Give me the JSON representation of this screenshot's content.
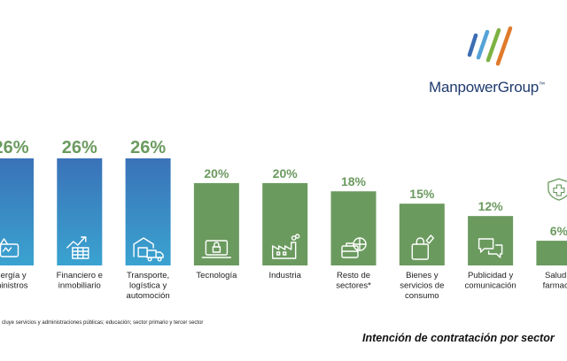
{
  "brand": {
    "name": "ManpowerGroup",
    "trademark": "™"
  },
  "footnote": "cluye servicios y administraciones públicas; educación; sector primario y tercer sector",
  "colors": {
    "blue_bar_top": "#3a72b8",
    "blue_bar_bottom": "#3aa3d0",
    "green_bar": "#6b9a5f",
    "green_text": "#6b9a5f",
    "brand_text": "#1f3b6e",
    "logo_stripes": [
      "#3c6db3",
      "#55a3d6",
      "#7db243",
      "#e07a2b"
    ]
  },
  "chart_data": {
    "type": "bar",
    "title": "Intención de contratación por sector",
    "ylim": [
      0,
      26
    ],
    "value_suffix": "%",
    "categories": [
      "nergía y|ministros",
      "Financiero e|inmobiliario",
      "Transporte,|logística y|automoción",
      "Tecnología",
      "Industria",
      "Resto de|sectores*",
      "Bienes y|servicios de|consumo",
      "Publicidad y|comunicación",
      "Salud y|farmacia"
    ],
    "values": [
      26,
      26,
      26,
      20,
      20,
      18,
      15,
      12,
      6
    ],
    "value_labels": [
      "26%",
      "26%",
      "26%",
      "20%",
      "20%",
      "18%",
      "15%",
      "12%",
      "6%"
    ],
    "icons": [
      "energy-icon",
      "growth-chart-icon",
      "warehouse-truck-icon",
      "laptop-lock-icon",
      "factory-icon",
      "briefcase-globe-icon",
      "shopping-bag-icon",
      "chat-bubbles-icon",
      "shield-cross-icon"
    ],
    "bar_styles": [
      "blue",
      "blue",
      "blue",
      "green",
      "green",
      "green",
      "green",
      "green",
      "green"
    ]
  }
}
